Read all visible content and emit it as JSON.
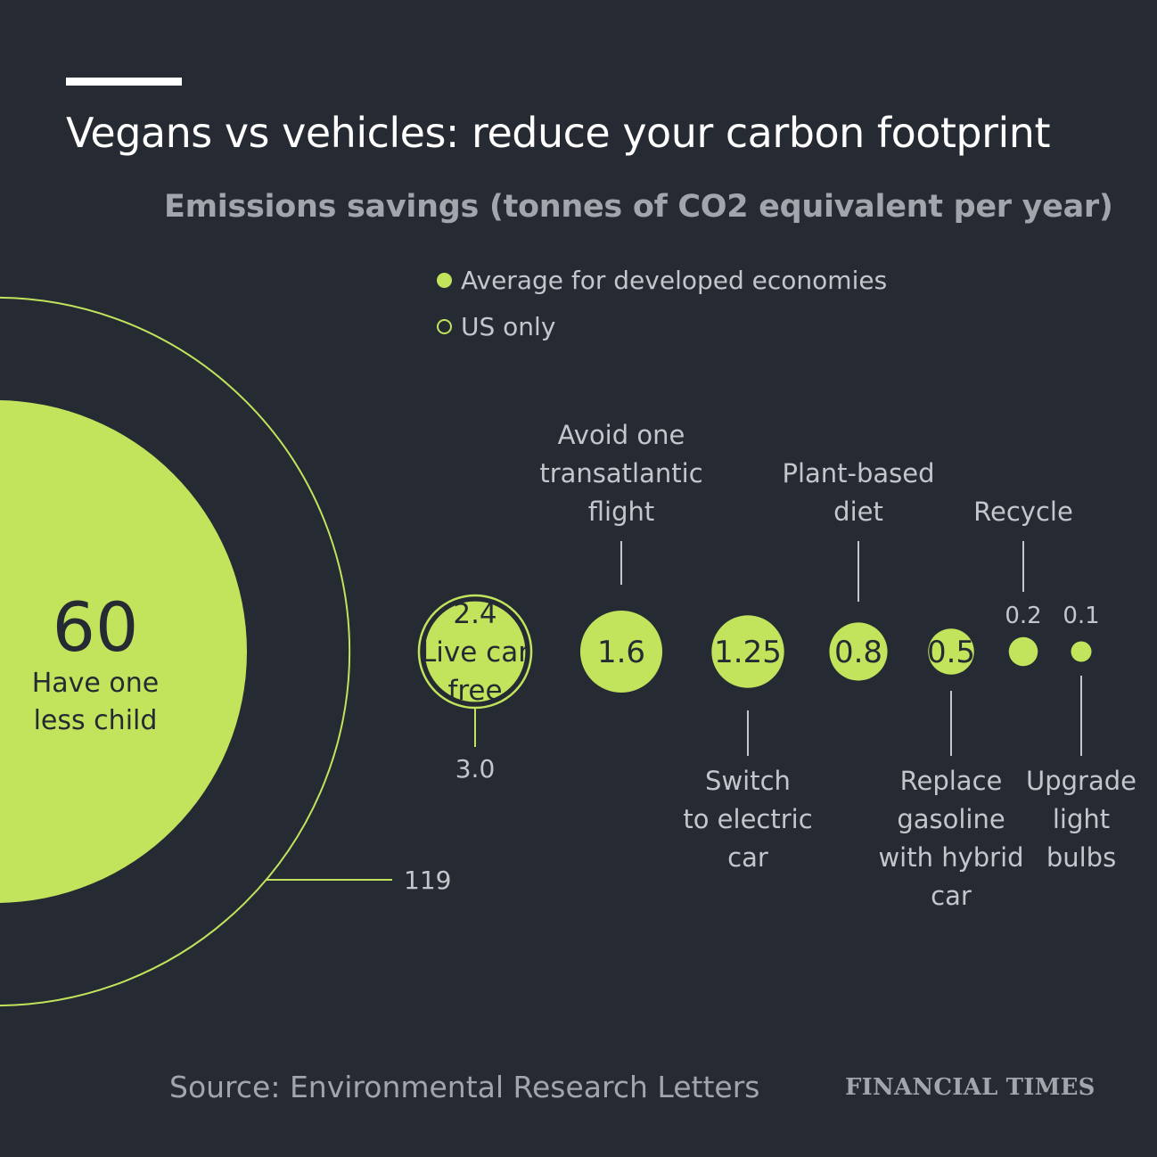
{
  "title": "Vegans vs vehicles: reduce your carbon footprint",
  "subtitle": "Emissions savings (tonnes of CO2 equivalent per year)",
  "legend": {
    "average": "Average for developed economies",
    "us_only": "US only"
  },
  "source": "Source: Environmental Research Letters",
  "brand": "FINANCIAL TIMES",
  "colors": {
    "background": "#262a33",
    "accent": "#c1e45c",
    "text_primary": "#ffffff",
    "text_secondary": "#a2a5ac",
    "label_text": "#c4c6cb",
    "value_text": "#262a33"
  },
  "chart_data": {
    "type": "bubble",
    "unit": "tonnes of CO2 equivalent per year",
    "series": [
      {
        "name": "Average for developed economies",
        "style": "filled"
      },
      {
        "name": "US only",
        "style": "ring"
      }
    ],
    "items": [
      {
        "label": "Have one less child",
        "value": 60,
        "value_label": "60",
        "us_value": 119,
        "us_label": "119"
      },
      {
        "label": "Live car free",
        "value": 2.4,
        "value_label": "2.4",
        "us_value": 3.0,
        "us_label": "3.0"
      },
      {
        "label": "Avoid one transatlantic flight",
        "value": 1.6,
        "value_label": "1.6"
      },
      {
        "label": "Switch to electric car",
        "value": 1.25,
        "value_label": "1.25"
      },
      {
        "label": "Plant-based diet",
        "value": 0.8,
        "value_label": "0.8"
      },
      {
        "label": "Replace gasoline with hybrid car",
        "value": 0.5,
        "value_label": "0.5"
      },
      {
        "label": "Recycle",
        "value": 0.2,
        "value_label": "0.2"
      },
      {
        "label": "Upgrade light bulbs",
        "value": 0.1,
        "value_label": "0.1"
      }
    ]
  }
}
